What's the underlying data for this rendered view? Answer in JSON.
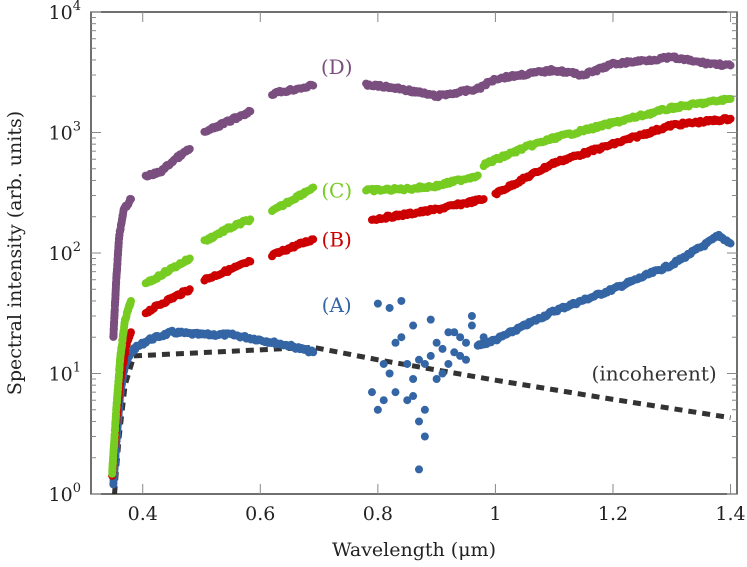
{
  "chart_data": {
    "type": "scatter",
    "title": "",
    "xlabel": "Wavelength (μm)",
    "ylabel": "Spectral intensity (arb. units)",
    "xlim": [
      0.312,
      1.411
    ],
    "ylim": [
      1,
      10000
    ],
    "yscale": "log",
    "grid": false,
    "x_ticks": [
      0.4,
      0.6,
      0.8,
      1.0,
      1.2,
      1.4
    ],
    "x_tick_labels": [
      "0.4",
      "0.6",
      "0.8",
      "1",
      "1.2",
      "1.4"
    ],
    "y_ticks": [
      1,
      10,
      100,
      1000,
      10000
    ],
    "y_tick_labels": [
      {
        "base": "10",
        "exp": "0"
      },
      {
        "base": "10",
        "exp": "1"
      },
      {
        "base": "10",
        "exp": "2"
      },
      {
        "base": "10",
        "exp": "3"
      },
      {
        "base": "10",
        "exp": "4"
      }
    ],
    "series": [
      {
        "name": "(D)",
        "color": "#7a4e7e",
        "label_at": [
          0.73,
          3500
        ],
        "segments": [
          [
            [
              0.35,
              20
            ],
            [
              0.355,
              60
            ],
            [
              0.36,
              140
            ],
            [
              0.368,
              230
            ],
            [
              0.38,
              280
            ]
          ],
          [
            [
              0.405,
              430
            ],
            [
              0.43,
              470
            ],
            [
              0.455,
              600
            ],
            [
              0.48,
              730
            ]
          ],
          [
            [
              0.505,
              1000
            ],
            [
              0.54,
              1200
            ],
            [
              0.583,
              1500
            ]
          ],
          [
            [
              0.62,
              2100
            ],
            [
              0.69,
              2450
            ]
          ],
          [
            [
              0.78,
              2500
            ],
            [
              0.84,
              2300
            ],
            [
              0.9,
              2000
            ],
            [
              0.97,
              2300
            ],
            [
              1.0,
              2800
            ],
            [
              1.1,
              3300
            ],
            [
              1.15,
              3000
            ],
            [
              1.2,
              3700
            ],
            [
              1.3,
              4200
            ],
            [
              1.35,
              3800
            ],
            [
              1.4,
              3600
            ]
          ]
        ]
      },
      {
        "name": "(C)",
        "color": "#77cc22",
        "label_at": [
          0.73,
          330
        ],
        "segments": [
          [
            [
              0.348,
              1.5
            ],
            [
              0.355,
              5
            ],
            [
              0.362,
              14
            ],
            [
              0.37,
              28
            ],
            [
              0.38,
              40
            ]
          ],
          [
            [
              0.405,
              55
            ],
            [
              0.44,
              70
            ],
            [
              0.48,
              90
            ]
          ],
          [
            [
              0.505,
              125
            ],
            [
              0.54,
              155
            ],
            [
              0.583,
              190
            ]
          ],
          [
            [
              0.62,
              220
            ],
            [
              0.65,
              270
            ],
            [
              0.69,
              350
            ]
          ],
          [
            [
              0.78,
              330
            ],
            [
              0.85,
              340
            ],
            [
              0.9,
              360
            ],
            [
              0.97,
              440
            ]
          ],
          [
            [
              0.98,
              540
            ],
            [
              1.05,
              750
            ],
            [
              1.1,
              900
            ],
            [
              1.2,
              1200
            ],
            [
              1.3,
              1600
            ],
            [
              1.4,
              1900
            ]
          ]
        ]
      },
      {
        "name": "(B)",
        "color": "#cc0000",
        "label_at": [
          0.73,
          130
        ],
        "segments": [
          [
            [
              0.348,
              1.4
            ],
            [
              0.355,
              4
            ],
            [
              0.362,
              9
            ],
            [
              0.372,
              17
            ],
            [
              0.38,
              22
            ]
          ],
          [
            [
              0.405,
              32
            ],
            [
              0.44,
              40
            ],
            [
              0.48,
              50
            ]
          ],
          [
            [
              0.505,
              60
            ],
            [
              0.54,
              70
            ],
            [
              0.583,
              85
            ]
          ],
          [
            [
              0.62,
              95
            ],
            [
              0.65,
              110
            ],
            [
              0.69,
              130
            ]
          ],
          [
            [
              0.79,
              190
            ],
            [
              0.85,
              210
            ],
            [
              0.9,
              230
            ],
            [
              0.98,
              280
            ]
          ],
          [
            [
              1.0,
              310
            ],
            [
              1.1,
              560
            ],
            [
              1.2,
              800
            ],
            [
              1.3,
              1150
            ],
            [
              1.4,
              1300
            ]
          ]
        ]
      },
      {
        "name": "(A)",
        "color": "#3465a4",
        "label_at": [
          0.73,
          37
        ],
        "segments": [
          [
            [
              0.35,
              1.2
            ],
            [
              0.356,
              3
            ],
            [
              0.362,
              7
            ],
            [
              0.37,
              12
            ],
            [
              0.385,
              16
            ],
            [
              0.41,
              19
            ],
            [
              0.45,
              22
            ],
            [
              0.5,
              21
            ],
            [
              0.55,
              21
            ],
            [
              0.6,
              19
            ],
            [
              0.65,
              17
            ],
            [
              0.69,
              15
            ]
          ],
          [
            [
              0.97,
              17
            ],
            [
              1.0,
              19
            ],
            [
              1.05,
              25
            ],
            [
              1.1,
              33
            ],
            [
              1.2,
              50
            ],
            [
              1.3,
              80
            ],
            [
              1.36,
              120
            ],
            [
              1.38,
              140
            ],
            [
              1.4,
              120
            ]
          ]
        ],
        "scatter": [
          [
            0.79,
            7
          ],
          [
            0.8,
            5
          ],
          [
            0.81,
            12
          ],
          [
            0.82,
            35
          ],
          [
            0.83,
            7
          ],
          [
            0.84,
            40
          ],
          [
            0.85,
            6
          ],
          [
            0.86,
            25
          ],
          [
            0.87,
            4
          ],
          [
            0.87,
            1.6
          ],
          [
            0.88,
            5
          ],
          [
            0.88,
            12
          ],
          [
            0.89,
            28
          ],
          [
            0.9,
            18
          ],
          [
            0.91,
            10
          ],
          [
            0.92,
            22
          ],
          [
            0.93,
            15
          ],
          [
            0.94,
            20
          ],
          [
            0.95,
            13
          ],
          [
            0.96,
            25
          ],
          [
            0.97,
            17
          ],
          [
            0.82,
            10
          ],
          [
            0.83,
            18
          ],
          [
            0.85,
            12
          ],
          [
            0.86,
            9
          ],
          [
            0.89,
            14
          ],
          [
            0.9,
            9
          ],
          [
            0.92,
            12
          ],
          [
            0.8,
            38
          ],
          [
            0.84,
            20
          ],
          [
            0.81,
            6
          ],
          [
            0.87,
            13
          ],
          [
            0.93,
            22
          ],
          [
            0.95,
            18
          ],
          [
            0.96,
            30
          ],
          [
            0.98,
            20
          ],
          [
            0.91,
            16
          ],
          [
            0.94,
            14
          ],
          [
            0.86,
            6.5
          ],
          [
            0.88,
            3
          ]
        ]
      }
    ],
    "reference_line": {
      "name": "(incoherent)",
      "color": "#333333",
      "style": "dashed",
      "label_at": [
        1.27,
        10
      ],
      "points": [
        [
          0.352,
          1
        ],
        [
          0.36,
          3
        ],
        [
          0.37,
          8
        ],
        [
          0.385,
          14
        ],
        [
          0.69,
          16.5
        ],
        [
          0.8,
          13
        ],
        [
          1.0,
          8.8
        ],
        [
          1.2,
          6.1
        ],
        [
          1.4,
          4.3
        ]
      ]
    }
  }
}
